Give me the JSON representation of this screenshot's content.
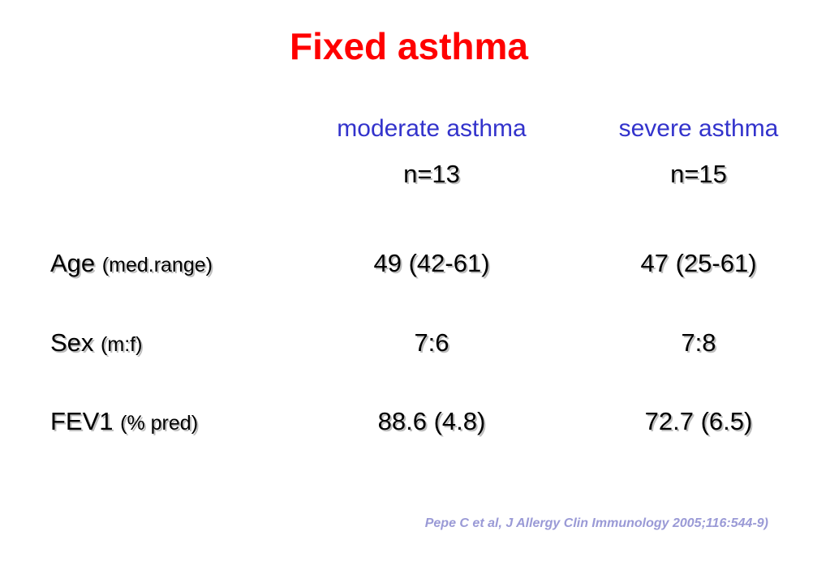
{
  "title": "Fixed asthma",
  "columns": [
    {
      "name": "moderate asthma",
      "n": "n=13"
    },
    {
      "name": "severe asthma",
      "n": "n=15"
    }
  ],
  "rows": [
    {
      "label": "Age",
      "unit": "(med.range)",
      "values": [
        "49 (42-61)",
        "47 (25-61)"
      ]
    },
    {
      "label": "Sex",
      "unit": "(m:f)",
      "values": [
        "7:6",
        "7:8"
      ]
    },
    {
      "label": "FEV1",
      "unit": "(% pred)",
      "values": [
        "88.6 (4.8)",
        "72.7 (6.5)"
      ]
    }
  ],
  "citation": "Pepe C et al, J Allergy Clin Immunology 2005;116:544-9)",
  "colors": {
    "title": "#ff0000",
    "column_header": "#3333cc",
    "citation": "#9a9ad6"
  }
}
